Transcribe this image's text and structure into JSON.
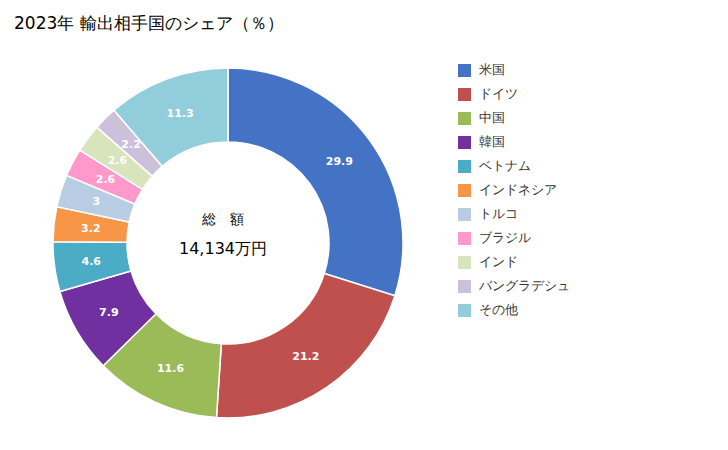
{
  "chart_data": {
    "type": "pie",
    "title": "2023年 輸出相手国のシェア（％）",
    "annotations": [
      "総　額",
      "14,134万円"
    ],
    "categories": [
      "米国",
      "ドイツ",
      "中国",
      "韓国",
      "ベトナム",
      "インドネシア",
      "トルコ",
      "ブラジル",
      "インド",
      "バングラデシュ",
      "その他"
    ],
    "values": [
      29.9,
      21.2,
      11.6,
      7.9,
      4.6,
      3.2,
      3.0,
      2.6,
      2.6,
      2.2,
      11.3
    ],
    "colors": [
      "#4472C4",
      "#C0504D",
      "#9BBB59",
      "#7030A0",
      "#4BACC6",
      "#F79646",
      "#B8CCE4",
      "#FF99CC",
      "#D7E4BC",
      "#CCC0DA",
      "#92CDDC"
    ],
    "data_labels": true,
    "legend": "right"
  }
}
